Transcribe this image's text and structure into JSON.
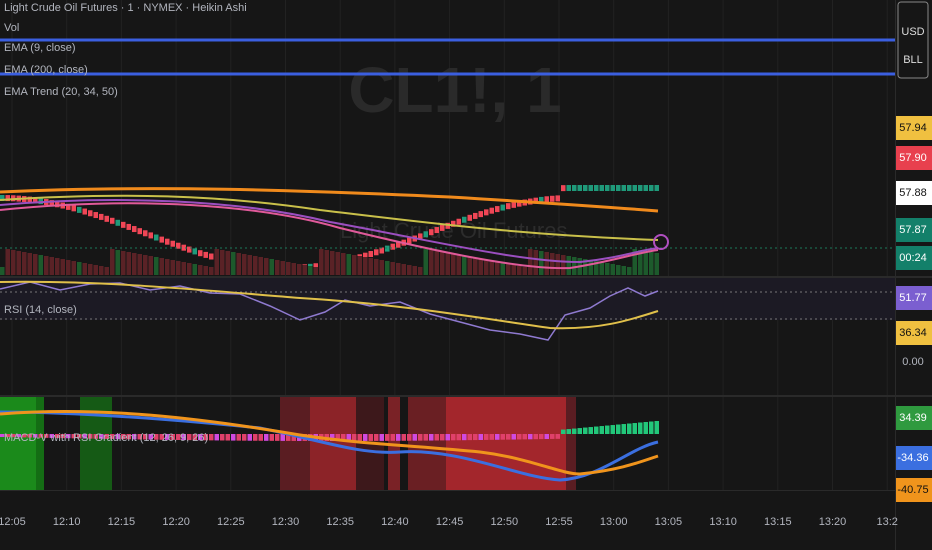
{
  "header": {
    "symbol": "CL1!, 1",
    "watermark": "Light Crude Oil Futures"
  },
  "legend": [
    "Light Crude Oil Futures · 1 · NYMEX · Heikin Ashi",
    "Vol",
    "EMA (9, close)",
    "EMA (200, close)",
    "EMA Trend (20, 34, 50)",
    "RSI (14, close)",
    "MACD-V with RSI Gradient (12, 26, 9, 26)"
  ],
  "price_scale": {
    "currency": "USD",
    "unit": "BLL",
    "labels": [
      "57.94",
      "57.90",
      "57.88",
      "57.87",
      "00:24",
      "51.77",
      "36.34",
      "0.00",
      "34.39",
      "-34.36",
      "-40.75"
    ]
  },
  "time_axis": [
    "12:05",
    "12:10",
    "12:15",
    "12:20",
    "12:25",
    "12:30",
    "12:35",
    "12:40",
    "12:45",
    "12:50",
    "12:55",
    "13:00",
    "13:05",
    "13:10",
    "13:15",
    "13:20",
    "13:2"
  ]
}
